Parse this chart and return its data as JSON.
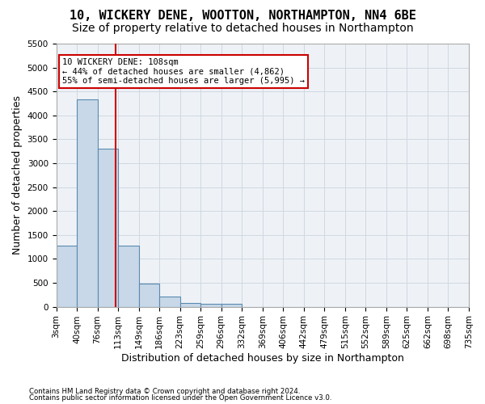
{
  "title": "10, WICKERY DENE, WOOTTON, NORTHAMPTON, NN4 6BE",
  "subtitle": "Size of property relative to detached houses in Northampton",
  "xlabel": "Distribution of detached houses by size in Northampton",
  "ylabel": "Number of detached properties",
  "footer_line1": "Contains HM Land Registry data © Crown copyright and database right 2024.",
  "footer_line2": "Contains public sector information licensed under the Open Government Licence v3.0.",
  "bar_values": [
    1270,
    4330,
    3300,
    1280,
    490,
    215,
    85,
    55,
    55,
    0,
    0,
    0,
    0,
    0,
    0,
    0,
    0,
    0,
    0,
    0
  ],
  "bin_labels": [
    "3sqm",
    "40sqm",
    "76sqm",
    "113sqm",
    "149sqm",
    "186sqm",
    "223sqm",
    "259sqm",
    "296sqm",
    "332sqm",
    "369sqm",
    "406sqm",
    "442sqm",
    "479sqm",
    "515sqm",
    "552sqm",
    "589sqm",
    "625sqm",
    "662sqm",
    "698sqm",
    "735sqm"
  ],
  "bar_color": "#c8d8e8",
  "bar_edge_color": "#5a8ab0",
  "bar_edge_width": 0.8,
  "grid_color": "#d0d8e0",
  "bg_color": "#eef2f7",
  "annotation_text": "10 WICKERY DENE: 108sqm\n← 44% of detached houses are smaller (4,862)\n55% of semi-detached houses are larger (5,995) →",
  "annotation_box_color": "#ffffff",
  "annotation_box_edge": "#cc0000",
  "vline_color": "#cc0000",
  "ylim": [
    0,
    5500
  ],
  "yticks": [
    0,
    500,
    1000,
    1500,
    2000,
    2500,
    3000,
    3500,
    4000,
    4500,
    5000,
    5500
  ],
  "title_fontsize": 11,
  "subtitle_fontsize": 10,
  "xlabel_fontsize": 9,
  "ylabel_fontsize": 9,
  "tick_fontsize": 7.5
}
